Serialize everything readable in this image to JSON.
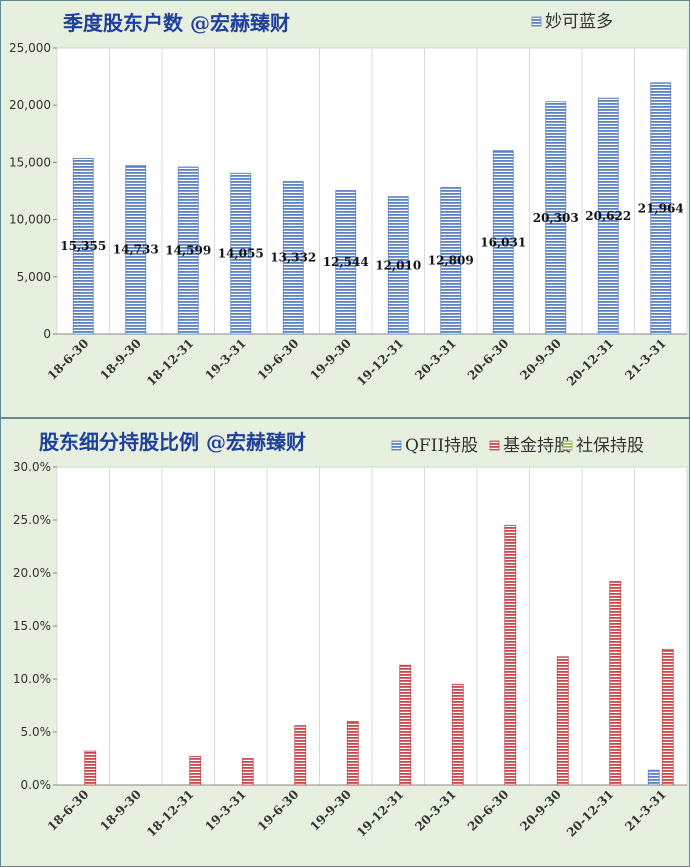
{
  "chart_data": [
    {
      "type": "bar",
      "title": "季度股东户数 @宏赫臻财",
      "categories": [
        "18-6-30",
        "18-9-30",
        "18-12-31",
        "19-3-31",
        "19-6-30",
        "19-9-30",
        "19-12-31",
        "20-3-31",
        "20-6-30",
        "20-9-30",
        "20-12-31",
        "21-3-31"
      ],
      "series": [
        {
          "name": "妙可蓝多",
          "color": "#5b82c4",
          "values": [
            15355,
            14733,
            14599,
            14055,
            13332,
            12544,
            12010,
            12809,
            16031,
            20303,
            20622,
            21964
          ]
        }
      ],
      "data_labels": [
        "15,355",
        "14,733",
        "14,599",
        "14,055",
        "13,332",
        "12,544",
        "12,010",
        "12,809",
        "16,031",
        "20,303",
        "20,622",
        "21,964"
      ],
      "ylim": [
        0,
        25000
      ],
      "yticks": [
        0,
        5000,
        10000,
        15000,
        20000,
        25000
      ],
      "ytick_labels": [
        "0",
        "5,000",
        "10,000",
        "15,000",
        "20,000",
        "25,000"
      ],
      "grid": "vertical",
      "legend": "top-right"
    },
    {
      "type": "bar",
      "title": "股东细分持股比例 @宏赫臻财",
      "categories": [
        "18-6-30",
        "18-9-30",
        "18-12-31",
        "19-3-31",
        "19-6-30",
        "19-9-30",
        "19-12-31",
        "20-3-31",
        "20-6-30",
        "20-9-30",
        "20-12-31",
        "21-3-31"
      ],
      "series": [
        {
          "name": "QFII持股",
          "color": "#5b82c4",
          "values": [
            0,
            0,
            0,
            0,
            0,
            0,
            0,
            0,
            0,
            0,
            0,
            1.4
          ]
        },
        {
          "name": "基金持股",
          "color": "#c9474a",
          "values": [
            3.2,
            0,
            2.7,
            2.5,
            5.6,
            6.0,
            11.3,
            9.5,
            24.5,
            12.1,
            19.2,
            12.8
          ]
        },
        {
          "name": "社保持股",
          "color": "#99bb55",
          "values": [
            0,
            0,
            0,
            0,
            0,
            0,
            0,
            0,
            0,
            0,
            0,
            0
          ]
        }
      ],
      "ylim": [
        0,
        30
      ],
      "yticks": [
        0,
        5,
        10,
        15,
        20,
        25,
        30
      ],
      "ytick_labels": [
        "0.0%",
        "5.0%",
        "10.0%",
        "15.0%",
        "20.0%",
        "25.0%",
        "30.0%"
      ],
      "grid": "vertical",
      "legend": "top-right"
    }
  ]
}
